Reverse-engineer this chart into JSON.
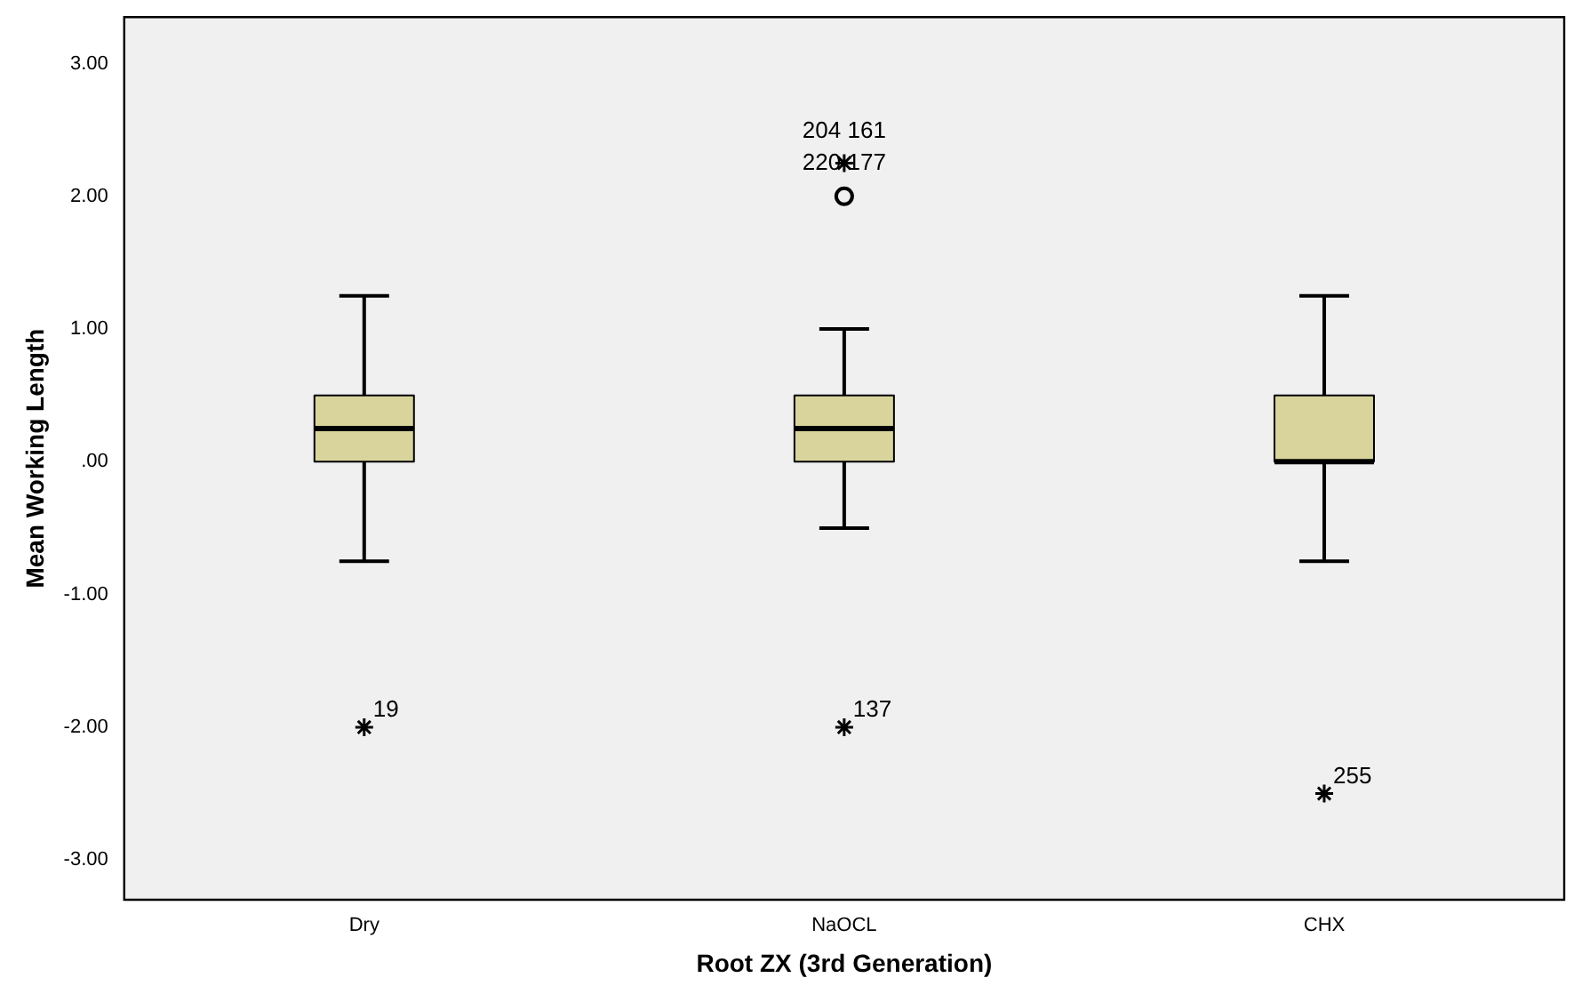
{
  "chart_data": {
    "type": "box",
    "xlabel": "Root ZX (3rd Generation)",
    "ylabel": "Mean Working Length",
    "categories": [
      "Dry",
      "NaOCL",
      "CHX"
    ],
    "ylim": [
      -3.3,
      3.35
    ],
    "yticks": [
      {
        "value": -3,
        "label": "-3.00"
      },
      {
        "value": -2,
        "label": "-2.00"
      },
      {
        "value": -1,
        "label": "-1.00"
      },
      {
        "value": 0,
        "label": ".00"
      },
      {
        "value": 1,
        "label": "1.00"
      },
      {
        "value": 2,
        "label": "2.00"
      },
      {
        "value": 3,
        "label": "3.00"
      }
    ],
    "grid": false,
    "legend": false,
    "series": [
      {
        "type": "box",
        "color": "#d8d49c",
        "boxes": [
          {
            "low": -0.75,
            "q1": 0,
            "median": 0.25,
            "q3": 0.5,
            "high": 1.25
          },
          {
            "low": -0.5,
            "q1": 0,
            "median": 0.25,
            "q3": 0.5,
            "high": 1,
            "outliers": [
              2
            ]
          },
          {
            "low": -0.75,
            "q1": 0,
            "median": 0,
            "q3": 0.5,
            "high": 1.25
          }
        ]
      },
      {
        "type": "scatter",
        "marker": "cross",
        "color": "#000000",
        "x": [
          "Dry",
          "NaOCL",
          "NaOCL",
          "CHX"
        ],
        "values": [
          -2,
          2.25,
          -2,
          -2.5
        ]
      }
    ],
    "annotations": [
      {
        "text": "19",
        "x": "Dry",
        "y": -2
      },
      {
        "text": "204 161",
        "x": "NaOCL",
        "y": 2.25
      },
      {
        "text": "220 177",
        "x": "NaOCL",
        "y": 2.25
      },
      {
        "text": "137",
        "x": "NaOCL",
        "y": -2
      },
      {
        "text": "255",
        "x": "CHX",
        "y": -2.5
      }
    ]
  }
}
